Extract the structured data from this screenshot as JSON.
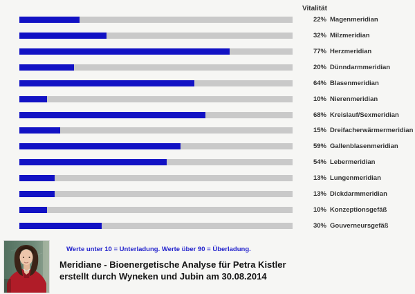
{
  "page": {
    "background_color": "#f6f6f4"
  },
  "chart_data": {
    "type": "bar",
    "orientation": "horizontal",
    "header": "Vitalität",
    "unit": "%",
    "xlim": [
      0,
      100
    ],
    "grid": false,
    "legend": false,
    "bar_color": "#1212c4",
    "track_color": "#c9c9c9",
    "categories": [
      "Magenmeridian",
      "Milzmeridian",
      "Herzmeridian",
      "Dünndarmmeridian",
      "Blasenmeridian",
      "Nierenmeridian",
      "Kreislauf/Sexmeridian",
      "Dreifacherwärmermeridian",
      "Gallenblasenmeridian",
      "Lebermeridian",
      "Lungenmeridian",
      "Dickdarmmeridian",
      "Konzeptionsgefäß",
      "Gouverneursgefäß"
    ],
    "values": [
      22,
      32,
      77,
      20,
      64,
      10,
      68,
      15,
      59,
      54,
      13,
      13,
      10,
      30
    ],
    "value_labels": [
      "22%",
      "32%",
      "77%",
      "20%",
      "64%",
      "10%",
      "68%",
      "15%",
      "59%",
      "54%",
      "13%",
      "13%",
      "10%",
      "30%"
    ]
  },
  "footer": {
    "note": "Werte unter 10 = Unterladung. Werte über 90 = Überladung.",
    "note_color": "#2323cc",
    "title_line1": "Meridiane - Bioenergetische Analyse für Petra Kistler",
    "title_line2": "erstellt durch Wyneken und Jubin am 30.08.2014",
    "photo_description": "portrait-of-woman-red-jacket"
  }
}
